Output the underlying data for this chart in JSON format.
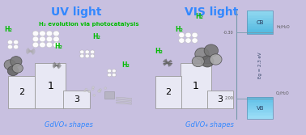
{
  "left_bg": "#c8c0e0",
  "right_bg": "#9cdce8",
  "left_title": "UV light",
  "right_title": "VIS light",
  "left_subtitle": "H₂ evolution via photocatalysis",
  "left_label": "GdVO₄ shapes",
  "right_label": "GdVO₄ shapes",
  "h2_color": "#00bb00",
  "title_color": "#3388ff",
  "podium_color": "#e8e8f4",
  "podium_edge": "#999999",
  "cb_color_top": "#90d8f0",
  "cb_color_bot": "#50b8e0",
  "vb_color_top": "#50b8e0",
  "vb_color_bot": "#90d8f0",
  "eg_text_color": "#335577",
  "axis_color": "#7799aa",
  "label_color": "#555555"
}
